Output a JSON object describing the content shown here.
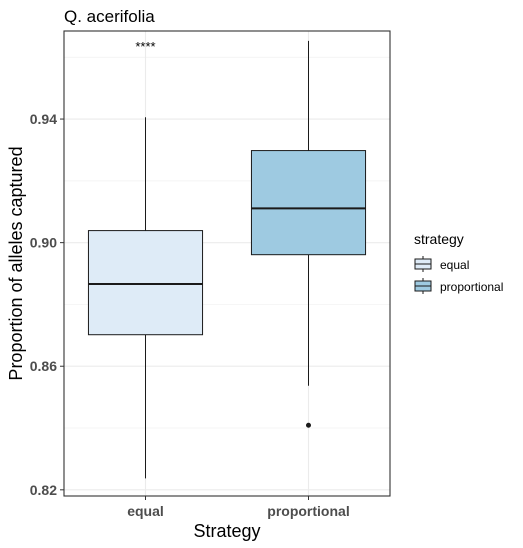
{
  "chart_data": {
    "type": "boxplot",
    "title": "Q. acerifolia",
    "xlabel": "Strategy",
    "ylabel": "Proportion of alleles captured",
    "ylim": [
      0.818,
      0.9685
    ],
    "y_ticks": [
      0.82,
      0.86,
      0.9,
      0.94
    ],
    "y_tick_labels": [
      "0.82",
      "0.86",
      "0.90",
      "0.94"
    ],
    "categories": [
      "equal",
      "proportional"
    ],
    "grid": true,
    "legend": {
      "title": "strategy",
      "position": "right",
      "entries": [
        "equal",
        "proportional"
      ]
    },
    "annotation": "****",
    "boxes": [
      {
        "category": "equal",
        "whisker_low": 0.8237,
        "q1": 0.8702,
        "median": 0.8866,
        "q3": 0.9039,
        "whisker_high": 0.9406,
        "outliers": [],
        "fill": "#deebf7"
      },
      {
        "category": "proportional",
        "whisker_low": 0.8537,
        "q1": 0.8961,
        "median": 0.9111,
        "q3": 0.9298,
        "whisker_high": 0.9653,
        "outliers": [
          0.8409
        ],
        "fill": "#9ecae1"
      }
    ]
  }
}
